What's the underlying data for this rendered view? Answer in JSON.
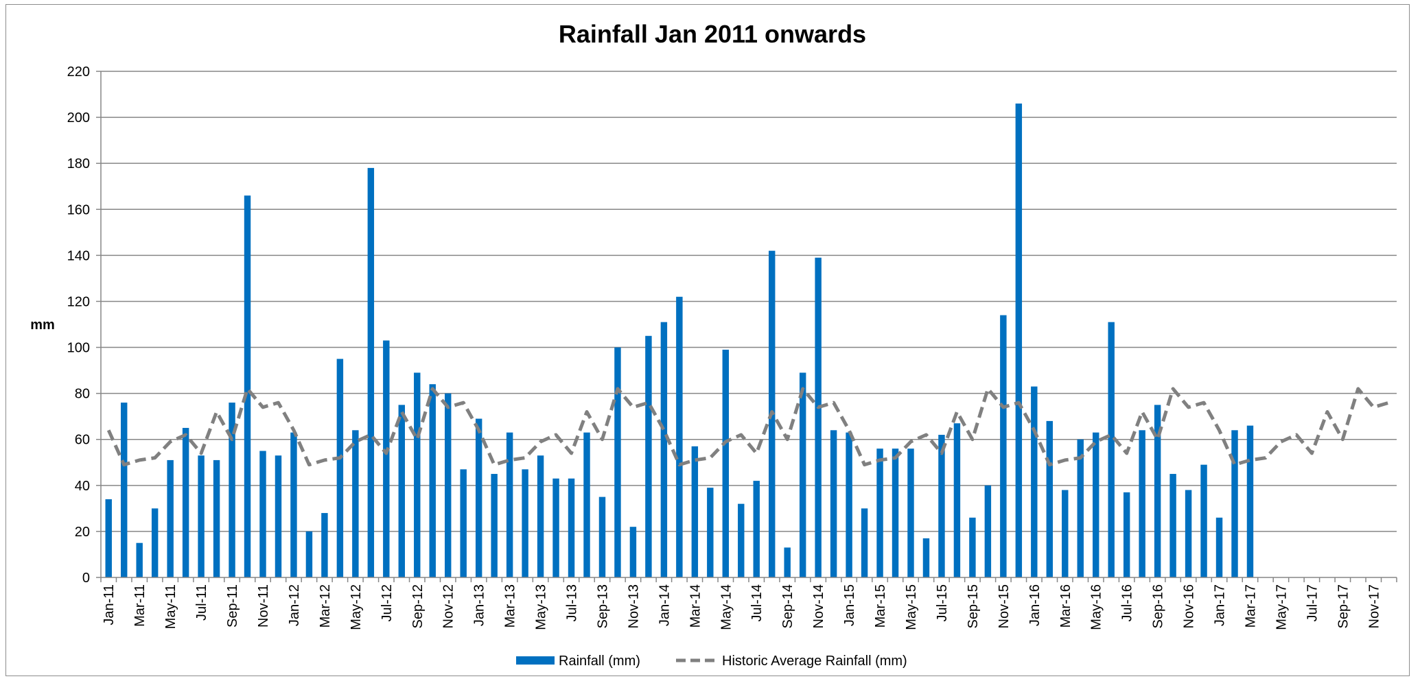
{
  "chart_data": {
    "type": "bar",
    "title": "Rainfall Jan 2011 onwards",
    "xlabel": "",
    "ylabel": "mm",
    "ylim": [
      0,
      220
    ],
    "yticks": [
      0,
      20,
      40,
      60,
      80,
      100,
      120,
      140,
      160,
      180,
      200,
      220
    ],
    "grid": true,
    "legend_position": "bottom",
    "categories": [
      "Jan-11",
      "Feb-11",
      "Mar-11",
      "Apr-11",
      "May-11",
      "Jun-11",
      "Jul-11",
      "Aug-11",
      "Sep-11",
      "Oct-11",
      "Nov-11",
      "Dec-11",
      "Jan-12",
      "Feb-12",
      "Mar-12",
      "Apr-12",
      "May-12",
      "Jun-12",
      "Jul-12",
      "Aug-12",
      "Sep-12",
      "Oct-12",
      "Nov-12",
      "Dec-12",
      "Jan-13",
      "Feb-13",
      "Mar-13",
      "Apr-13",
      "May-13",
      "Jun-13",
      "Jul-13",
      "Aug-13",
      "Sep-13",
      "Oct-13",
      "Nov-13",
      "Dec-13",
      "Jan-14",
      "Feb-14",
      "Mar-14",
      "Apr-14",
      "May-14",
      "Jun-14",
      "Jul-14",
      "Aug-14",
      "Sep-14",
      "Oct-14",
      "Nov-14",
      "Dec-14",
      "Jan-15",
      "Feb-15",
      "Mar-15",
      "Apr-15",
      "May-15",
      "Jun-15",
      "Jul-15",
      "Aug-15",
      "Sep-15",
      "Oct-15",
      "Nov-15",
      "Dec-15",
      "Jan-16",
      "Feb-16",
      "Mar-16",
      "Apr-16",
      "May-16",
      "Jun-16",
      "Jul-16",
      "Aug-16",
      "Sep-16",
      "Oct-16",
      "Nov-16",
      "Dec-16",
      "Jan-17",
      "Feb-17",
      "Mar-17",
      "Apr-17",
      "May-17",
      "Jun-17",
      "Jul-17",
      "Aug-17",
      "Sep-17",
      "Oct-17",
      "Nov-17",
      "Dec-17"
    ],
    "shown_tick_labels": [
      "Jan-11",
      "Mar-11",
      "May-11",
      "Jul-11",
      "Sep-11",
      "Nov-11",
      "Jan-12",
      "Mar-12",
      "May-12",
      "Jul-12",
      "Sep-12",
      "Nov-12",
      "Jan-13",
      "Mar-13",
      "May-13",
      "Jul-13",
      "Sep-13",
      "Nov-13",
      "Jan-14",
      "Mar-14",
      "May-14",
      "Jul-14",
      "Sep-14",
      "Nov-14",
      "Jan-15",
      "Mar-15",
      "May-15",
      "Jul-15",
      "Sep-15",
      "Nov-15",
      "Jan-16",
      "Mar-16",
      "May-16",
      "Jul-16",
      "Sep-16",
      "Nov-16",
      "Jan-17",
      "Mar-17",
      "May-17",
      "Jul-17",
      "Sep-17",
      "Nov-17"
    ],
    "series": [
      {
        "name": "Rainfall (mm)",
        "type": "bar",
        "color": "#0070C0",
        "values": [
          34,
          76,
          15,
          30,
          51,
          65,
          53,
          51,
          76,
          166,
          55,
          53,
          63,
          20,
          28,
          95,
          64,
          178,
          103,
          75,
          89,
          84,
          80,
          47,
          69,
          45,
          63,
          47,
          53,
          43,
          43,
          63,
          35,
          100,
          22,
          105,
          111,
          122,
          57,
          39,
          99,
          32,
          42,
          142,
          13,
          89,
          139,
          64,
          63,
          30,
          56,
          56,
          56,
          17,
          62,
          67,
          26,
          40,
          114,
          206,
          83,
          68,
          38,
          60,
          63,
          111,
          37,
          64,
          75,
          45,
          38,
          49,
          26,
          64,
          66,
          null,
          null,
          null,
          null,
          null,
          null,
          null,
          null,
          null
        ]
      },
      {
        "name": "Historic Average Rainfall (mm)",
        "type": "line",
        "style": "dashed",
        "color": "#808080",
        "values": [
          64,
          49,
          51,
          52,
          59,
          62,
          54,
          72,
          60,
          82,
          74,
          76,
          64,
          49,
          51,
          52,
          59,
          62,
          54,
          72,
          60,
          82,
          74,
          76,
          64,
          49,
          51,
          52,
          59,
          62,
          54,
          72,
          60,
          82,
          74,
          76,
          64,
          49,
          51,
          52,
          59,
          62,
          54,
          72,
          60,
          82,
          74,
          76,
          64,
          49,
          51,
          52,
          59,
          62,
          54,
          72,
          60,
          82,
          74,
          76,
          64,
          49,
          51,
          52,
          59,
          62,
          54,
          72,
          60,
          82,
          74,
          76,
          64,
          49,
          51,
          52,
          59,
          62,
          54,
          72,
          60,
          82,
          74,
          76
        ]
      }
    ]
  }
}
